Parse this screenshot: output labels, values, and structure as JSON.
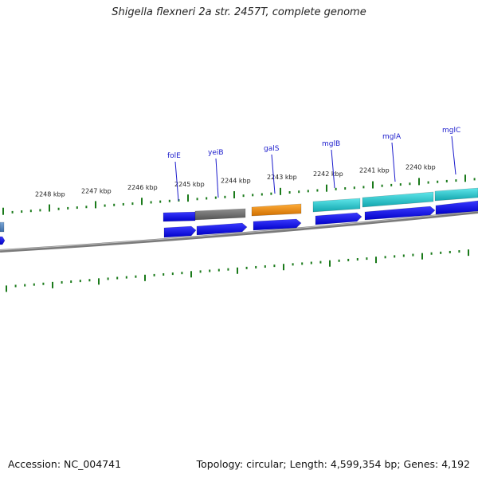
{
  "title": "Shigella flexneri 2a str. 2457T, complete genome",
  "accession": "Accession: NC_004741",
  "stats": "Topology: circular; Length: 4,599,354 bp; Genes: 4,192",
  "kbp_labels": [
    "2248 kbp",
    "2247 kbp",
    "2246 kbp",
    "2245 kbp",
    "2244 kbp",
    "2243 kbp",
    "2242 kbp",
    "2241 kbp",
    "2240 kbp"
  ],
  "gene_labels": [
    "folE",
    "yeiB",
    "galS",
    "mglB",
    "mglA",
    "mglC"
  ],
  "colors": {
    "label_blue": "#1a1acc",
    "arrow_blue": "#0a0adf",
    "tick_green": "#1a7a1a",
    "backbone_gray": "#7a7a7a",
    "teal": "#1cc4cc",
    "orange": "#f08a10",
    "gray_gene": "#6e6e6e"
  }
}
